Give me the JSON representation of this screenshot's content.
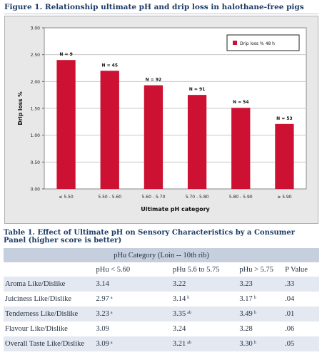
{
  "figure": {
    "title": "Figure 1.  Relationship ultimate pH and drip loss in halothane-free pigs"
  },
  "chart_data": {
    "type": "bar",
    "categories": [
      "≤ 5.50",
      "5.50 - 5.60",
      "5.60 - 5.70",
      "5.70 - 5.80",
      "5.80 - 5.90",
      "≥ 5.90"
    ],
    "series": [
      {
        "name": "Drip loss % 48 h",
        "values": [
          2.4,
          2.2,
          1.93,
          1.75,
          1.51,
          1.21
        ]
      }
    ],
    "bar_labels": [
      "N = 9",
      "N = 45",
      "N = 92",
      "N = 91",
      "N = 54",
      "N = 53"
    ],
    "yticks": [
      "0.00",
      "0.50",
      "1.00",
      "1.50",
      "2.00",
      "2.50",
      "3.00"
    ],
    "ylim": [
      0,
      3
    ],
    "xlabel": "Ultimate pH category",
    "ylabel": "Drip loss %",
    "legend_position": "top-right",
    "bar_color": "#cc1133",
    "grid": true
  },
  "table": {
    "title": "Table 1. Effect of Ultimate pH on Sensory Characteristics by a Consumer Panel (higher score is better)",
    "band": "pHu Category (Loin -- 10th rib)",
    "columns": [
      "pHu < 5.60",
      "pHu 5.6 to 5.75",
      "pHu > 5.75",
      "P Value"
    ],
    "rows": [
      {
        "label": "Aroma Like/Dislike",
        "c1": "3.14",
        "c1s": "",
        "c2": "3.22",
        "c2s": "",
        "c3": "3.23",
        "c3s": "",
        "p": ".33"
      },
      {
        "label": "Juiciness Like/Dislike",
        "c1": "2.97",
        "c1s": "a",
        "c2": "3.14",
        "c2s": "b",
        "c3": "3.17",
        "c3s": "b",
        "p": ".04"
      },
      {
        "label": "Tenderness Like/Dislike",
        "c1": "3.23",
        "c1s": "a",
        "c2": "3.35",
        "c2s": "ab",
        "c3": "3.49",
        "c3s": "b",
        "p": ".01"
      },
      {
        "label": "Flavour Like/Dislike",
        "c1": "3.09",
        "c1s": "",
        "c2": "3.24",
        "c2s": "",
        "c3": "3.28",
        "c3s": "",
        "p": ".06"
      },
      {
        "label": "Overall Taste Like/Dislike",
        "c1": "3.09",
        "c1s": "a",
        "c2": "3.21",
        "c2s": "ab",
        "c3": "3.30",
        "c3s": "b",
        "p": ".05"
      }
    ]
  }
}
